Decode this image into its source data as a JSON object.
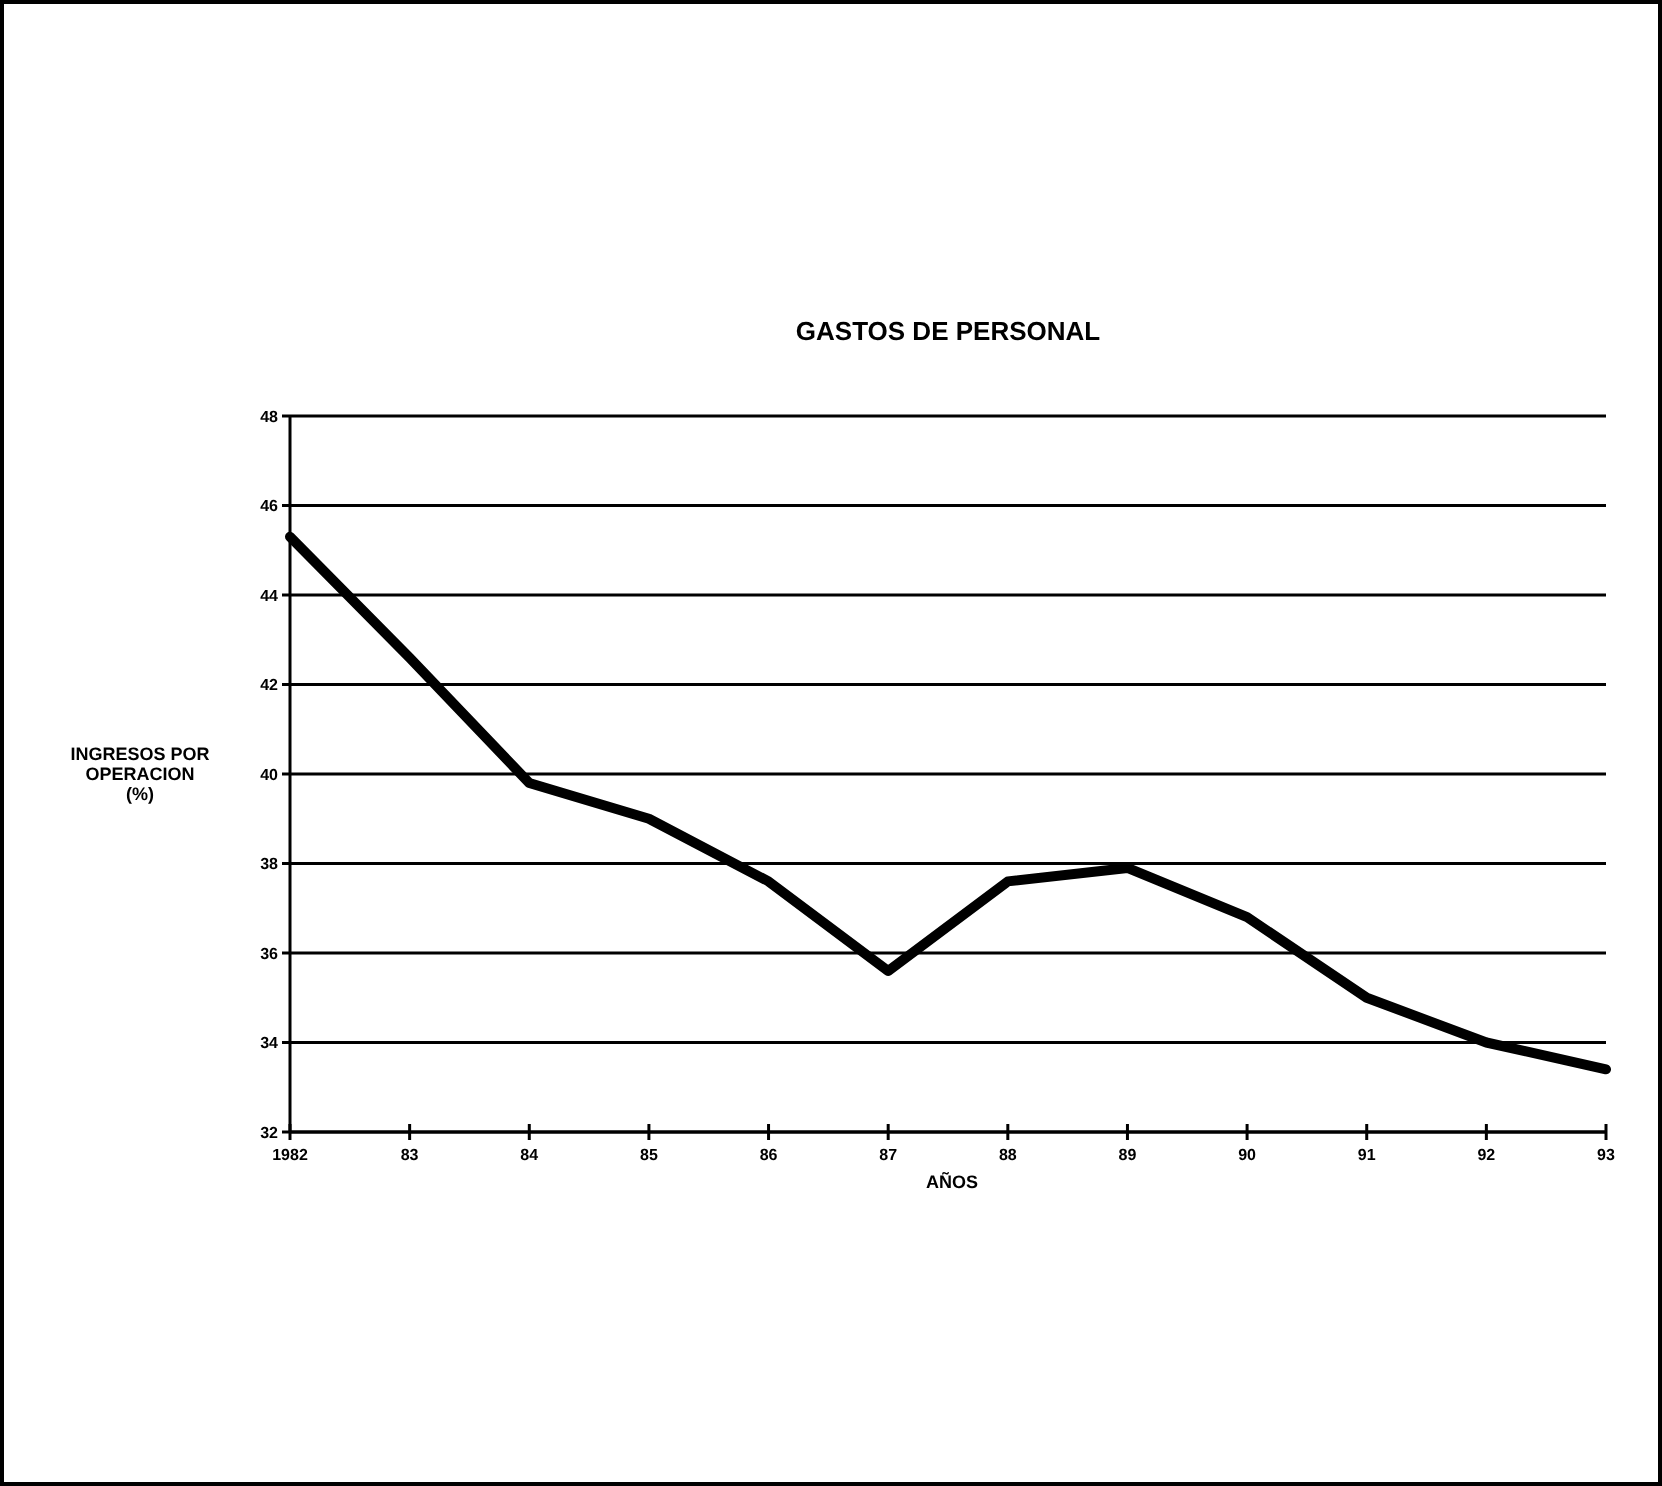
{
  "chart_data": {
    "type": "line",
    "title": "GASTOS DE PERSONAL",
    "xlabel": "AÑOS",
    "ylabel": "INGRESOS POR\nOPERACION\n(%)",
    "categories": [
      "1982",
      "83",
      "84",
      "85",
      "86",
      "87",
      "88",
      "89",
      "90",
      "91",
      "92",
      "93"
    ],
    "series": [
      {
        "color": "#000000",
        "values": [
          45.3,
          42.6,
          39.8,
          39.0,
          37.6,
          35.6,
          37.6,
          37.9,
          36.8,
          35.0,
          34.0,
          33.4
        ]
      }
    ],
    "ylim": [
      32,
      48
    ],
    "yticks": [
      32,
      34,
      36,
      38,
      40,
      42,
      44,
      46,
      48
    ],
    "grid": "y",
    "marker": "none",
    "line_style": "solid"
  }
}
